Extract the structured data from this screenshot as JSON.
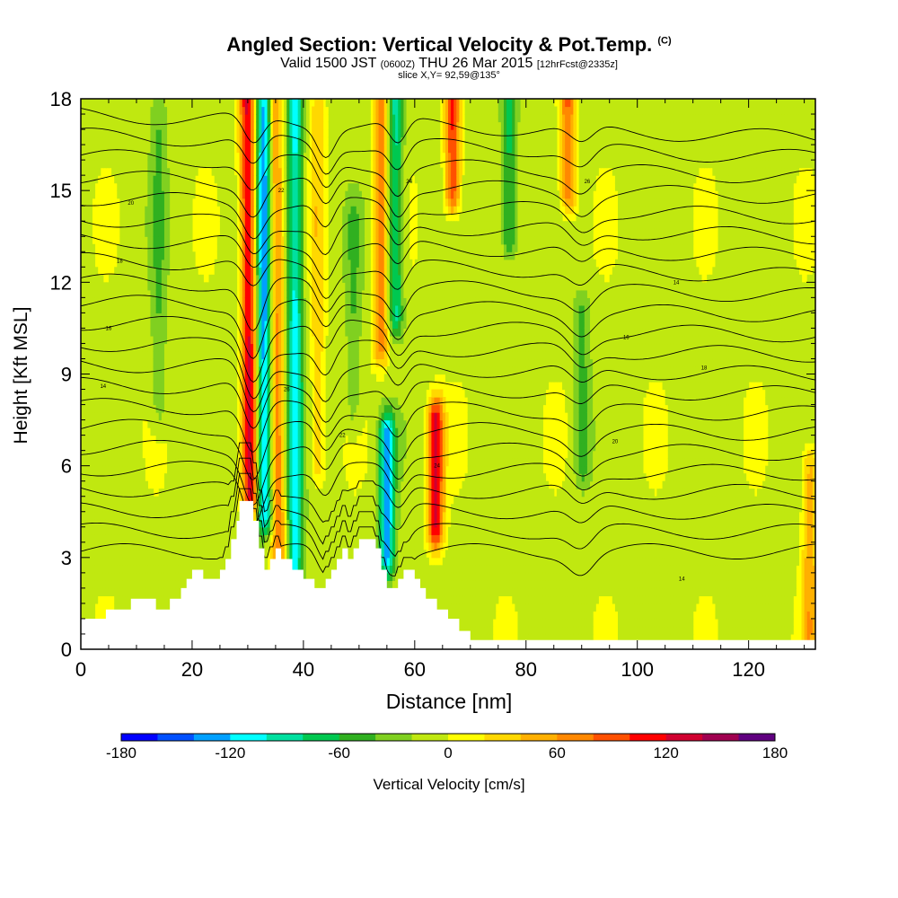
{
  "header": {
    "title": "Angled Section: Vertical Velocity & Pot.Temp.",
    "title_tag": "(C)",
    "subtitle_pre": "Valid 1500 JST",
    "subtitle_z": "(0600Z)",
    "subtitle_mid": "THU 26 Mar 2015",
    "subtitle_fcst": "[12hrFcst@2335z]",
    "slice": "slice X,Y= 92,59@135°"
  },
  "chart_data": {
    "type": "heatmap",
    "xlabel": "Distance [nm]",
    "ylabel": "Height [Kft MSL]",
    "xlim": [
      0,
      132
    ],
    "ylim": [
      0,
      18
    ],
    "xticks": [
      0,
      20,
      40,
      60,
      80,
      100,
      120
    ],
    "yticks": [
      0,
      3,
      6,
      9,
      12,
      15,
      18
    ],
    "colorbar": {
      "label": "Vertical Velocity [cm/s]",
      "ticks": [
        -180,
        -120,
        -60,
        0,
        60,
        120,
        180
      ],
      "range": [
        -180,
        180
      ],
      "step": 20,
      "colors": [
        "#0000ff",
        "#0050ff",
        "#00a0ff",
        "#00ffff",
        "#00e0a0",
        "#00c850",
        "#30b020",
        "#80d020",
        "#c0e810",
        "#ffff00",
        "#ffd800",
        "#ffb000",
        "#ff8800",
        "#ff5000",
        "#ff0000",
        "#d00030",
        "#a00050",
        "#600080"
      ]
    },
    "background_velocity": 0,
    "updrafts": [
      {
        "x": 30.5,
        "y0": 5.0,
        "y1": 18,
        "value": 130
      },
      {
        "x": 35.5,
        "y0": 3.0,
        "y1": 18,
        "value": 80
      },
      {
        "x": 42.5,
        "y0": 6.0,
        "y1": 18,
        "value": 40
      },
      {
        "x": 54.0,
        "y0": 10.0,
        "y1": 18,
        "value": 80
      },
      {
        "x": 63.8,
        "y0": 4.0,
        "y1": 7.5,
        "value": 130
      },
      {
        "x": 66.8,
        "y0": 15.0,
        "y1": 18,
        "value": 110
      },
      {
        "x": 87.5,
        "y0": 15.0,
        "y1": 18,
        "value": 90
      },
      {
        "x": 131.0,
        "y0": 0.5,
        "y1": 6.0,
        "value": 60
      }
    ],
    "downdrafts": [
      {
        "x": 33.0,
        "y0": 4.5,
        "y1": 18,
        "value": -130
      },
      {
        "x": 38.5,
        "y0": 2.0,
        "y1": 18,
        "value": -100
      },
      {
        "x": 55.0,
        "y0": 3.0,
        "y1": 7.0,
        "value": -120
      },
      {
        "x": 56.5,
        "y0": 11.0,
        "y1": 18,
        "value": -80
      },
      {
        "x": 77.0,
        "y0": 13.5,
        "y1": 18,
        "value": -60
      },
      {
        "x": 90.0,
        "y0": 6.0,
        "y1": 11.0,
        "value": -40
      },
      {
        "x": 14.0,
        "y0": 8.0,
        "y1": 18,
        "value": -30
      },
      {
        "x": 49.0,
        "y0": 8.0,
        "y1": 14.0,
        "value": -30
      }
    ],
    "terrain": [
      {
        "x": 0,
        "h": 1.0
      },
      {
        "x": 4.5,
        "h": 1.3
      },
      {
        "x": 9,
        "h": 1.65
      },
      {
        "x": 13.5,
        "h": 1.3
      },
      {
        "x": 16,
        "h": 1.65
      },
      {
        "x": 18,
        "h": 2.0
      },
      {
        "x": 19,
        "h": 2.3
      },
      {
        "x": 20,
        "h": 2.6
      },
      {
        "x": 22,
        "h": 2.3
      },
      {
        "x": 24,
        "h": 2.3
      },
      {
        "x": 25,
        "h": 2.6
      },
      {
        "x": 26,
        "h": 2.95
      },
      {
        "x": 27,
        "h": 3.6
      },
      {
        "x": 28,
        "h": 4.2
      },
      {
        "x": 28.5,
        "h": 4.85
      },
      {
        "x": 31,
        "h": 4.2
      },
      {
        "x": 32,
        "h": 3.3
      },
      {
        "x": 33,
        "h": 2.6
      },
      {
        "x": 34,
        "h": 2.95
      },
      {
        "x": 35,
        "h": 3.3
      },
      {
        "x": 36,
        "h": 2.95
      },
      {
        "x": 38,
        "h": 2.6
      },
      {
        "x": 40,
        "h": 2.3
      },
      {
        "x": 42,
        "h": 2.0
      },
      {
        "x": 44,
        "h": 2.3
      },
      {
        "x": 45,
        "h": 2.6
      },
      {
        "x": 46,
        "h": 2.95
      },
      {
        "x": 47,
        "h": 3.3
      },
      {
        "x": 48,
        "h": 2.95
      },
      {
        "x": 49,
        "h": 3.3
      },
      {
        "x": 50,
        "h": 3.6
      },
      {
        "x": 53,
        "h": 3.3
      },
      {
        "x": 54,
        "h": 2.6
      },
      {
        "x": 55,
        "h": 2.0
      },
      {
        "x": 57,
        "h": 2.3
      },
      {
        "x": 58,
        "h": 2.6
      },
      {
        "x": 60,
        "h": 2.3
      },
      {
        "x": 61,
        "h": 2.0
      },
      {
        "x": 62,
        "h": 1.65
      },
      {
        "x": 64,
        "h": 1.3
      },
      {
        "x": 66,
        "h": 1.0
      },
      {
        "x": 68,
        "h": 0.6
      },
      {
        "x": 70,
        "h": 0.3
      },
      {
        "x": 132,
        "h": 0.3
      }
    ],
    "theta_isolines": {
      "count": 22,
      "label_values": [
        "14",
        "16",
        "18",
        "20",
        "22",
        "24",
        "26"
      ]
    }
  }
}
